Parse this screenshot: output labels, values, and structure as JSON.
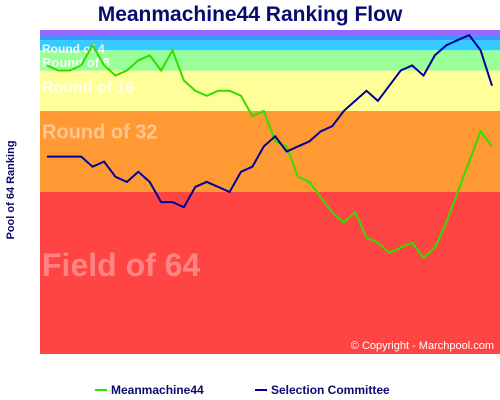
{
  "chart_data": {
    "type": "line",
    "title": "Meanmachine44 Ranking Flow",
    "ylabel": "Pool of 64 Ranking",
    "copyright": "© Copyright - Marchpool.com",
    "ylim": [
      0,
      64
    ],
    "zones": [
      {
        "label": "Field of 64",
        "from": 0,
        "to": 32,
        "color": "#ff4444"
      },
      {
        "label": "Round of 32",
        "from": 32,
        "to": 48,
        "color": "#ff9933"
      },
      {
        "label": "Round of 16",
        "from": 48,
        "to": 56,
        "color": "#ffff99"
      },
      {
        "label": "Round of 8",
        "from": 56,
        "to": 60,
        "color": "#99ff99"
      },
      {
        "label": "Round of 4",
        "from": 60,
        "to": 62,
        "color": "#33ccff"
      },
      {
        "label": "",
        "from": 62,
        "to": 63,
        "color": "#3399ff"
      },
      {
        "label": "",
        "from": 63,
        "to": 64,
        "color": "#9966ff"
      }
    ],
    "series": [
      {
        "name": "Meanmachine44",
        "color": "#33dd00",
        "values": [
          57,
          56,
          56,
          57,
          61,
          57,
          55,
          56,
          58,
          59,
          56,
          60,
          54,
          52,
          51,
          52,
          52,
          51,
          47,
          48,
          42,
          41,
          35,
          34,
          31,
          28,
          26,
          28,
          23,
          22,
          20,
          21,
          22,
          19,
          21,
          26,
          32,
          38,
          44,
          41
        ]
      },
      {
        "name": "Selection Committee",
        "color": "#000099",
        "values": [
          39,
          39,
          39,
          39,
          37,
          38,
          35,
          34,
          36,
          34,
          30,
          30,
          29,
          33,
          34,
          33,
          32,
          36,
          37,
          41,
          43,
          40,
          41,
          42,
          44,
          45,
          48,
          50,
          52,
          50,
          53,
          56,
          57,
          55,
          59,
          61,
          62,
          63,
          60,
          53
        ]
      }
    ]
  },
  "legend": {
    "items": [
      {
        "label": "Meanmachine44",
        "color": "#33dd00"
      },
      {
        "label": "Selection Committee",
        "color": "#000099"
      }
    ]
  }
}
